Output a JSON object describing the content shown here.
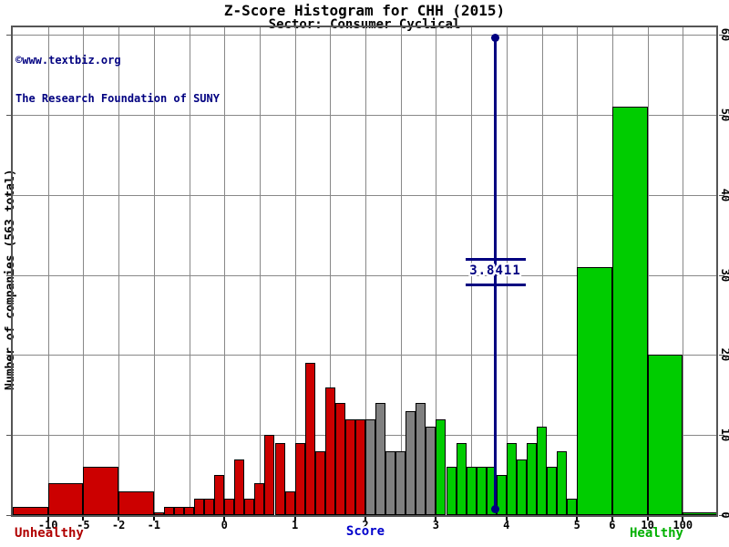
{
  "header": {
    "title": "Z-Score Histogram for CHH (2015)",
    "subtitle": "Sector: Consumer Cyclical"
  },
  "watermark": {
    "line1": "©www.textbiz.org",
    "line2": "The Research Foundation of SUNY"
  },
  "y_axis": {
    "title": "Number of companies (563 total)",
    "ticks": [
      0,
      10,
      20,
      30,
      40,
      50,
      60
    ],
    "max": 60
  },
  "x_axis": {
    "label": "Score",
    "ticks": [
      {
        "value": -10,
        "label": "-10"
      },
      {
        "value": -5,
        "label": "-5"
      },
      {
        "value": -2,
        "label": "-2"
      },
      {
        "value": -1,
        "label": "-1"
      },
      {
        "value": 0,
        "label": "0"
      },
      {
        "value": 1,
        "label": "1"
      },
      {
        "value": 2,
        "label": "2"
      },
      {
        "value": 3,
        "label": "3"
      },
      {
        "value": 4,
        "label": "4"
      },
      {
        "value": 5,
        "label": "5"
      },
      {
        "value": 6,
        "label": "6"
      },
      {
        "value": 10,
        "label": "10"
      },
      {
        "value": 100,
        "label": "100"
      }
    ]
  },
  "zone_labels": {
    "left": "Unhealthy",
    "right": "Healthy"
  },
  "marker": {
    "value": 3.8411,
    "label": "3.8411"
  },
  "colors": {
    "unhealthy": "#cc0000",
    "middle": "#808080",
    "healthy": "#00cc00",
    "marker": "#000080",
    "annotation": "#000080",
    "score_label": "#0000cc",
    "unhealthy_text": "#b00000",
    "healthy_text": "#00b000",
    "grid": "#888888"
  },
  "chart_data": {
    "type": "bar",
    "title": "Z-Score Histogram for CHH (2015)",
    "subtitle": "Sector: Consumer Cyclical",
    "xlabel": "Score",
    "ylabel": "Number of companies (563 total)",
    "total_companies": 563,
    "marker_value": 3.8411,
    "ylim": [
      0,
      60
    ],
    "grid": true,
    "legend_position": "none",
    "bins": [
      {
        "from": -999,
        "to": -10,
        "count": 1,
        "zone": "unhealthy"
      },
      {
        "from": -10,
        "to": -5,
        "count": 4,
        "zone": "unhealthy"
      },
      {
        "from": -5,
        "to": -2,
        "count": 6,
        "zone": "unhealthy"
      },
      {
        "from": -2,
        "to": -1,
        "count": 3,
        "zone": "unhealthy"
      },
      {
        "from": -1.0,
        "to": -0.857,
        "count": 0.3,
        "zone": "unhealthy"
      },
      {
        "from": -0.857,
        "to": -0.714,
        "count": 1,
        "zone": "unhealthy"
      },
      {
        "from": -0.714,
        "to": -0.571,
        "count": 1,
        "zone": "unhealthy"
      },
      {
        "from": -0.571,
        "to": -0.429,
        "count": 1,
        "zone": "unhealthy"
      },
      {
        "from": -0.429,
        "to": -0.286,
        "count": 2,
        "zone": "unhealthy"
      },
      {
        "from": -0.286,
        "to": -0.143,
        "count": 2,
        "zone": "unhealthy"
      },
      {
        "from": -0.143,
        "to": 0.0,
        "count": 5,
        "zone": "unhealthy"
      },
      {
        "from": 0.0,
        "to": 0.143,
        "count": 2,
        "zone": "unhealthy"
      },
      {
        "from": 0.143,
        "to": 0.286,
        "count": 7,
        "zone": "unhealthy"
      },
      {
        "from": 0.286,
        "to": 0.429,
        "count": 2,
        "zone": "unhealthy"
      },
      {
        "from": 0.429,
        "to": 0.571,
        "count": 4,
        "zone": "unhealthy"
      },
      {
        "from": 0.571,
        "to": 0.714,
        "count": 10,
        "zone": "unhealthy"
      },
      {
        "from": 0.714,
        "to": 0.857,
        "count": 9,
        "zone": "unhealthy"
      },
      {
        "from": 0.857,
        "to": 1.0,
        "count": 3,
        "zone": "unhealthy"
      },
      {
        "from": 1.0,
        "to": 1.143,
        "count": 9,
        "zone": "unhealthy"
      },
      {
        "from": 1.143,
        "to": 1.286,
        "count": 19,
        "zone": "unhealthy"
      },
      {
        "from": 1.286,
        "to": 1.429,
        "count": 8,
        "zone": "unhealthy"
      },
      {
        "from": 1.429,
        "to": 1.571,
        "count": 16,
        "zone": "unhealthy"
      },
      {
        "from": 1.571,
        "to": 1.714,
        "count": 14,
        "zone": "unhealthy"
      },
      {
        "from": 1.714,
        "to": 1.857,
        "count": 12,
        "zone": "unhealthy"
      },
      {
        "from": 1.857,
        "to": 2.0,
        "count": 12,
        "zone": "unhealthy"
      },
      {
        "from": 2.0,
        "to": 2.143,
        "count": 12,
        "zone": "middle"
      },
      {
        "from": 2.143,
        "to": 2.286,
        "count": 14,
        "zone": "middle"
      },
      {
        "from": 2.286,
        "to": 2.429,
        "count": 8,
        "zone": "middle"
      },
      {
        "from": 2.429,
        "to": 2.571,
        "count": 8,
        "zone": "middle"
      },
      {
        "from": 2.571,
        "to": 2.714,
        "count": 13,
        "zone": "middle"
      },
      {
        "from": 2.714,
        "to": 2.857,
        "count": 14,
        "zone": "middle"
      },
      {
        "from": 2.857,
        "to": 3.0,
        "count": 11,
        "zone": "middle"
      },
      {
        "from": 3.0,
        "to": 3.143,
        "count": 12,
        "zone": "healthy"
      },
      {
        "from": 3.143,
        "to": 3.286,
        "count": 6,
        "zone": "healthy"
      },
      {
        "from": 3.286,
        "to": 3.429,
        "count": 9,
        "zone": "healthy"
      },
      {
        "from": 3.429,
        "to": 3.571,
        "count": 6,
        "zone": "healthy"
      },
      {
        "from": 3.571,
        "to": 3.714,
        "count": 6,
        "zone": "healthy"
      },
      {
        "from": 3.714,
        "to": 3.857,
        "count": 6,
        "zone": "healthy"
      },
      {
        "from": 3.857,
        "to": 4.0,
        "count": 5,
        "zone": "healthy"
      },
      {
        "from": 4.0,
        "to": 4.143,
        "count": 9,
        "zone": "healthy"
      },
      {
        "from": 4.143,
        "to": 4.286,
        "count": 7,
        "zone": "healthy"
      },
      {
        "from": 4.286,
        "to": 4.429,
        "count": 9,
        "zone": "healthy"
      },
      {
        "from": 4.429,
        "to": 4.571,
        "count": 11,
        "zone": "healthy"
      },
      {
        "from": 4.571,
        "to": 4.714,
        "count": 6,
        "zone": "healthy"
      },
      {
        "from": 4.714,
        "to": 4.857,
        "count": 8,
        "zone": "healthy"
      },
      {
        "from": 4.857,
        "to": 5.0,
        "count": 2,
        "zone": "healthy"
      },
      {
        "from": 5,
        "to": 6,
        "count": 31,
        "zone": "healthy"
      },
      {
        "from": 6,
        "to": 10,
        "count": 51,
        "zone": "healthy"
      },
      {
        "from": 10,
        "to": 100,
        "count": 20,
        "zone": "healthy"
      },
      {
        "from": 100,
        "to": 999,
        "count": 0.3,
        "zone": "healthy"
      }
    ]
  }
}
